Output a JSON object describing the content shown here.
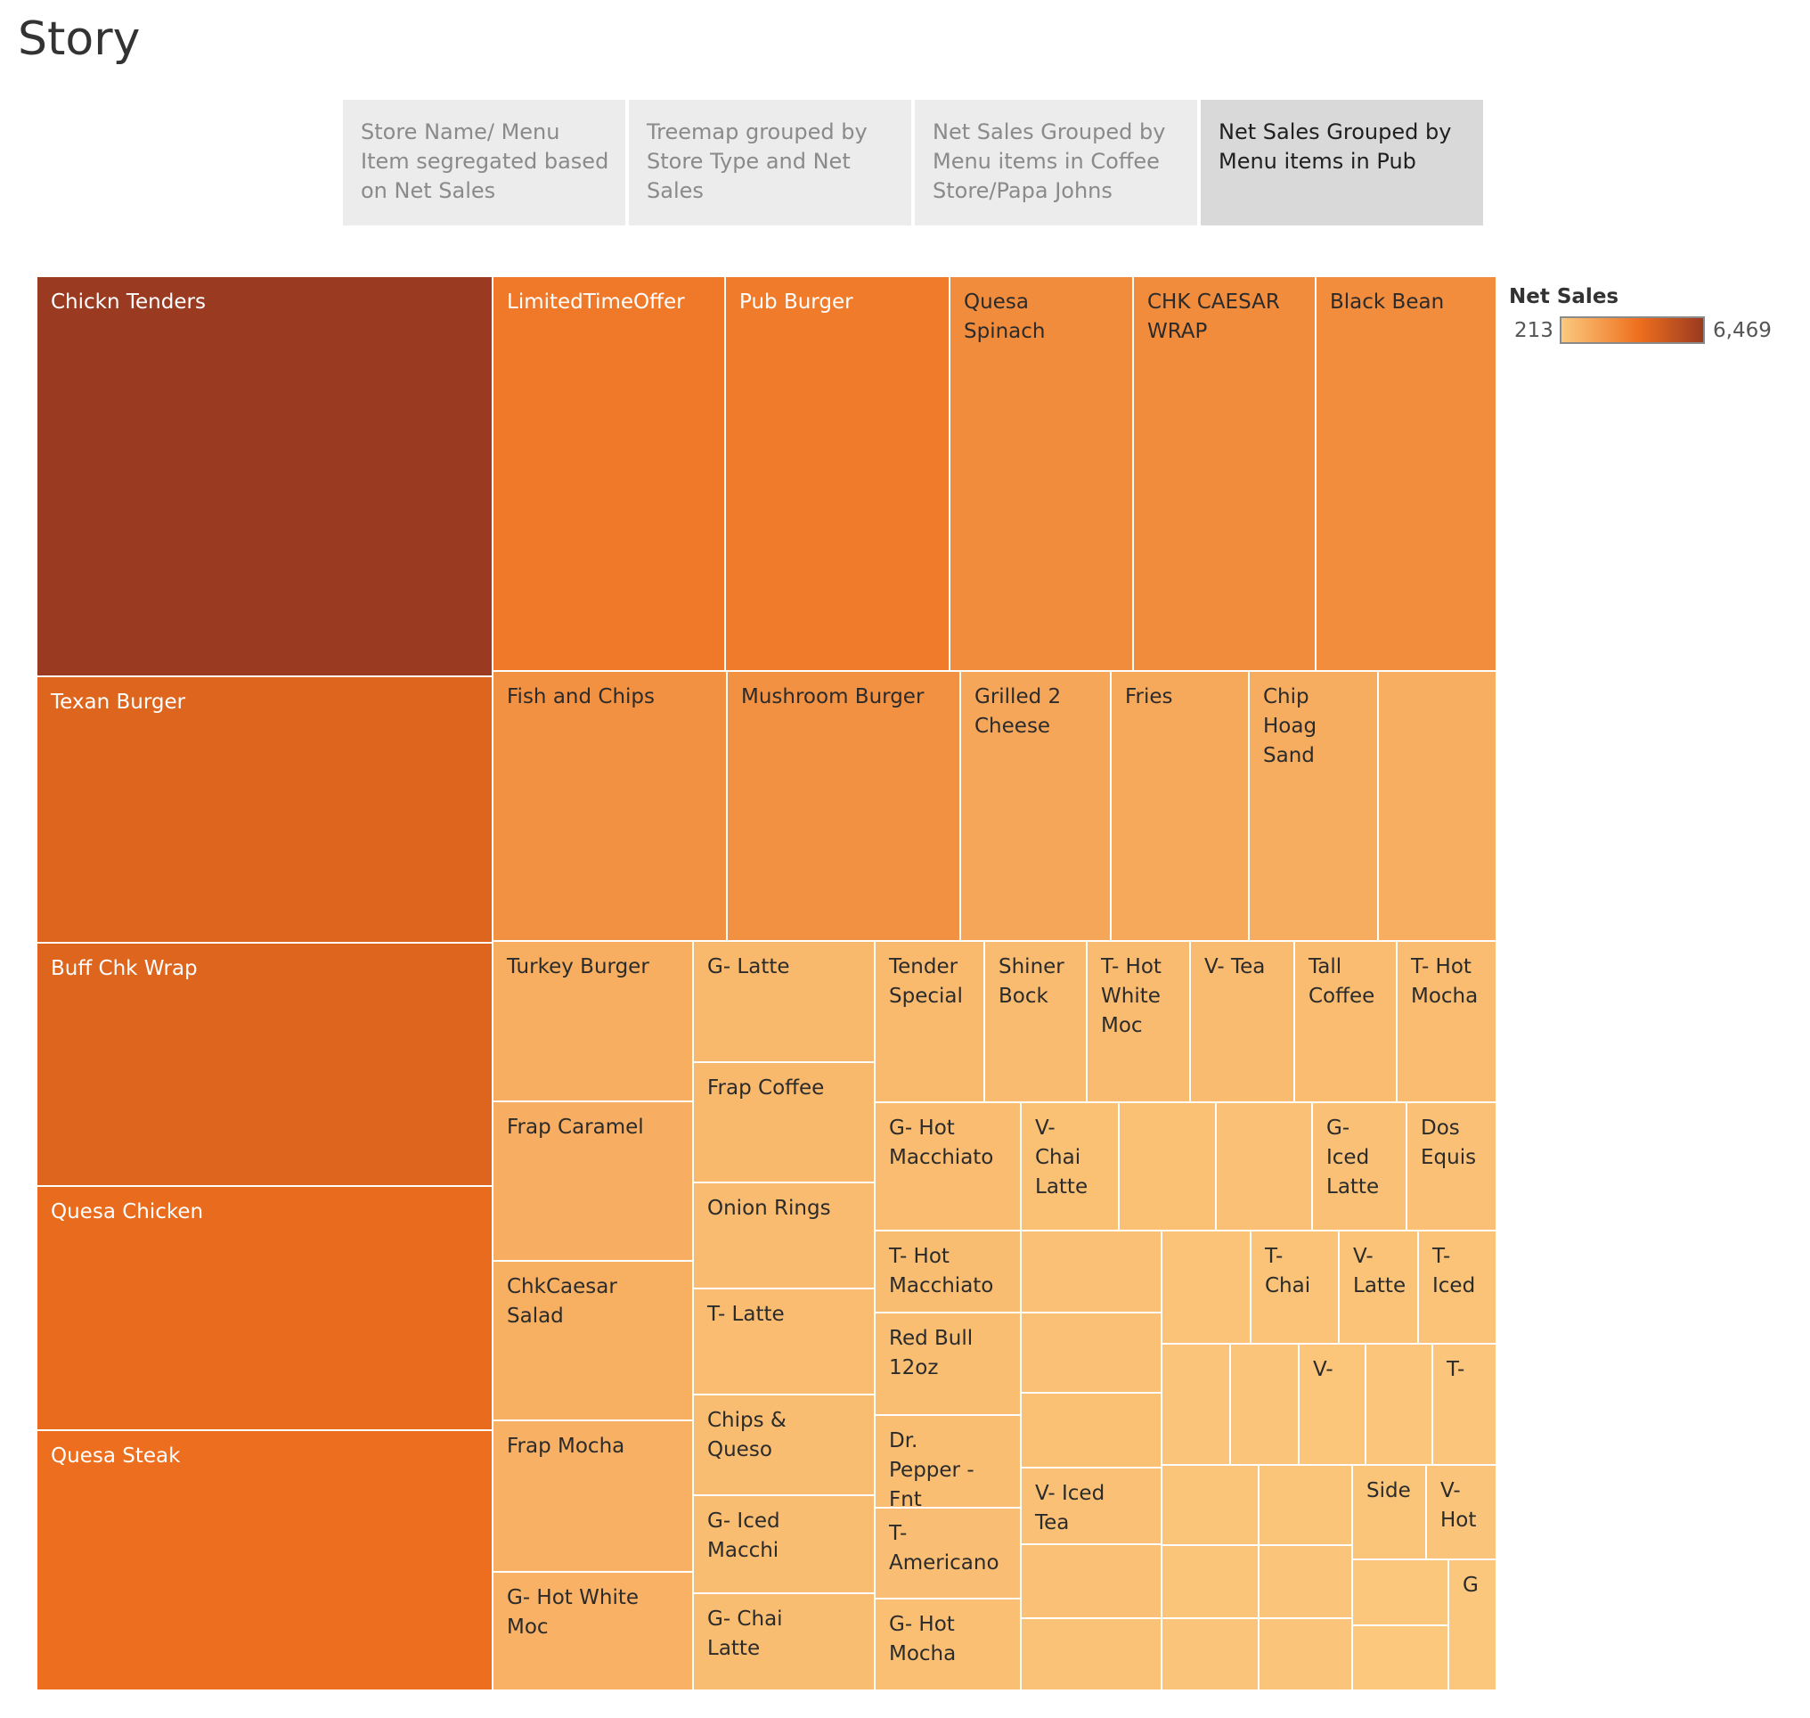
{
  "story": {
    "title": "Story"
  },
  "tabs": [
    {
      "label": "Store Name/ Menu Item segregated based on Net Sales",
      "active": false
    },
    {
      "label": "Treemap grouped by Store Type and Net Sales",
      "active": false
    },
    {
      "label": "Net Sales Grouped by Menu items in Coffee Store/Papa Johns",
      "active": false
    },
    {
      "label": "Net Sales Grouped by Menu items in Pub",
      "active": true
    }
  ],
  "legend": {
    "title": "Net Sales",
    "min_label": "213",
    "max_label": "6,469",
    "color_low": "#fbc97e",
    "color_mid": "#ee6f1e",
    "color_high": "#9a3a20"
  },
  "chart_data": {
    "type": "treemap",
    "measure": "Net Sales",
    "value_range": [
      213,
      6469
    ],
    "items": [
      {
        "label": "Chickn Tenders",
        "value": 6469
      },
      {
        "label": "Texan Burger",
        "value": 4200
      },
      {
        "label": "Buff Chk Wrap",
        "value": 4200
      },
      {
        "label": "Quesa Chicken",
        "value": 3850
      },
      {
        "label": "Quesa Steak",
        "value": 3700
      },
      {
        "label": "LimitedTimeOffer",
        "value": 3280
      },
      {
        "label": "Pub Burger",
        "value": 3180
      },
      {
        "label": "Quesa Spinach",
        "value": 2560
      },
      {
        "label": "CHK CAESAR WRAP",
        "value": 2560
      },
      {
        "label": "Black Bean",
        "value": 2500
      },
      {
        "label": "Fish and Chips",
        "value": 2350
      },
      {
        "label": "Mushroom Burger",
        "value": 2350
      },
      {
        "label": "Grilled 2 Cheese",
        "value": 1550
      },
      {
        "label": "Fries",
        "value": 1450
      },
      {
        "label": "Chip Hoag Sand",
        "value": 1300
      },
      {
        "label": "",
        "value": 1250
      },
      {
        "label": "Turkey Burger",
        "value": 1250
      },
      {
        "label": "Frap Caramel",
        "value": 1230
      },
      {
        "label": "ChkCaesar Salad",
        "value": 1200
      },
      {
        "label": "Frap Mocha",
        "value": 1150
      },
      {
        "label": "G- Hot White Moc",
        "value": 1120
      },
      {
        "label": "G- Latte",
        "value": 830
      },
      {
        "label": "Frap Coffee",
        "value": 820
      },
      {
        "label": "Onion Rings",
        "value": 730
      },
      {
        "label": "T- Latte",
        "value": 720
      },
      {
        "label": "Chips & Queso",
        "value": 690
      },
      {
        "label": "G- Iced Macchi",
        "value": 680
      },
      {
        "label": "G- Chai Latte",
        "value": 670
      },
      {
        "label": "Tender Special",
        "value": 770
      },
      {
        "label": "Shiner Bock",
        "value": 730
      },
      {
        "label": "T- Hot White Moc",
        "value": 730
      },
      {
        "label": "V- Tea",
        "value": 730
      },
      {
        "label": "Tall Coffee",
        "value": 720
      },
      {
        "label": "T- Hot Mocha",
        "value": 710
      },
      {
        "label": "G- Hot Macchiato",
        "value": 700
      },
      {
        "label": "V- Chai Latte",
        "value": 530
      },
      {
        "label": "",
        "value": 520
      },
      {
        "label": "",
        "value": 510
      },
      {
        "label": "G- Iced Latte",
        "value": 500
      },
      {
        "label": "Dos Equis",
        "value": 500
      },
      {
        "label": "T- Hot Macchiato",
        "value": 660
      },
      {
        "label": "Red Bull 12oz",
        "value": 650
      },
      {
        "label": "Dr. Pepper - Fnt",
        "value": 630
      },
      {
        "label": "T- Americano",
        "value": 620
      },
      {
        "label": "G- Hot Mocha",
        "value": 600
      },
      {
        "label": "",
        "value": 550
      },
      {
        "label": "",
        "value": 540
      },
      {
        "label": "",
        "value": 520
      },
      {
        "label": "V- Iced Tea",
        "value": 510
      },
      {
        "label": "",
        "value": 500
      },
      {
        "label": "",
        "value": 490
      },
      {
        "label": "",
        "value": 450
      },
      {
        "label": "T- Chai",
        "value": 450
      },
      {
        "label": "V- Latte",
        "value": 440
      },
      {
        "label": "T- Iced",
        "value": 430
      },
      {
        "label": "",
        "value": 360
      },
      {
        "label": "",
        "value": 350
      },
      {
        "label": "V-",
        "value": 340
      },
      {
        "label": "",
        "value": 330
      },
      {
        "label": "T-",
        "value": 320
      },
      {
        "label": "",
        "value": 400
      },
      {
        "label": "",
        "value": 390
      },
      {
        "label": "Side",
        "value": 380
      },
      {
        "label": "V- Hot",
        "value": 370
      },
      {
        "label": "",
        "value": 380
      },
      {
        "label": "",
        "value": 360
      },
      {
        "label": "",
        "value": 300
      },
      {
        "label": "G",
        "value": 280
      },
      {
        "label": "",
        "value": 360
      },
      {
        "label": "",
        "value": 350
      },
      {
        "label": "",
        "value": 240
      },
      {
        "label": "",
        "value": 213
      }
    ]
  }
}
